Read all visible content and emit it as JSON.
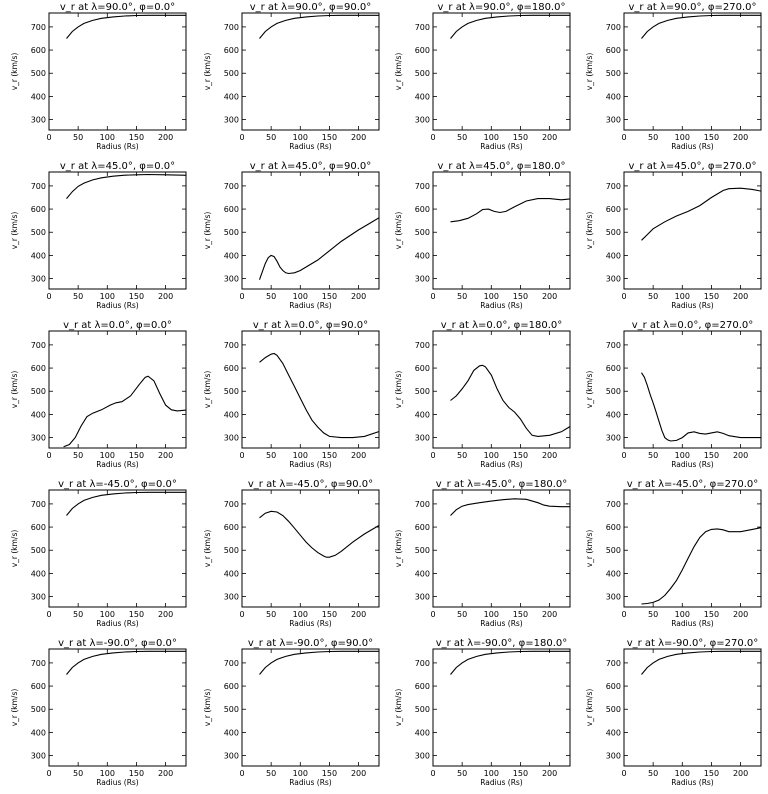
{
  "chart_data": [
    {
      "type": "line",
      "title": "v_r at λ=90.0°, φ=0.0°",
      "xlabel": "Radius (Rs)",
      "ylabel": "v_r (km/s)",
      "xlim": [
        0,
        235
      ],
      "ylim": [
        255,
        760
      ],
      "xticks": [
        0,
        50,
        100,
        150,
        200
      ],
      "yticks": [
        300,
        400,
        500,
        600,
        700
      ],
      "x": [
        30,
        40,
        50,
        60,
        75,
        90,
        110,
        130,
        150,
        170,
        200,
        230,
        240
      ],
      "y": [
        650,
        680,
        700,
        715,
        728,
        737,
        743,
        747,
        749,
        750,
        750,
        750,
        750
      ]
    },
    {
      "type": "line",
      "title": "v_r at λ=90.0°, φ=90.0°",
      "xlabel": "Radius (Rs)",
      "ylabel": "v_r (km/s)",
      "xlim": [
        0,
        235
      ],
      "ylim": [
        255,
        760
      ],
      "xticks": [
        0,
        50,
        100,
        150,
        200
      ],
      "yticks": [
        300,
        400,
        500,
        600,
        700
      ],
      "x": [
        30,
        40,
        50,
        60,
        75,
        90,
        110,
        130,
        150,
        170,
        200,
        230,
        240
      ],
      "y": [
        650,
        680,
        700,
        715,
        728,
        737,
        743,
        747,
        749,
        750,
        750,
        750,
        750
      ]
    },
    {
      "type": "line",
      "title": "v_r at λ=90.0°, φ=180.0°",
      "xlabel": "Radius (Rs)",
      "ylabel": "v_r (km/s)",
      "xlim": [
        0,
        235
      ],
      "ylim": [
        255,
        760
      ],
      "xticks": [
        0,
        50,
        100,
        150,
        200
      ],
      "yticks": [
        300,
        400,
        500,
        600,
        700
      ],
      "x": [
        30,
        40,
        50,
        60,
        75,
        90,
        110,
        130,
        150,
        170,
        200,
        230,
        240
      ],
      "y": [
        650,
        680,
        700,
        715,
        728,
        737,
        743,
        747,
        749,
        750,
        750,
        750,
        750
      ]
    },
    {
      "type": "line",
      "title": "v_r at λ=90.0°, φ=270.0°",
      "xlabel": "Radius (Rs)",
      "ylabel": "v_r (km/s)",
      "xlim": [
        0,
        235
      ],
      "ylim": [
        255,
        760
      ],
      "xticks": [
        0,
        50,
        100,
        150,
        200
      ],
      "yticks": [
        300,
        400,
        500,
        600,
        700
      ],
      "x": [
        30,
        40,
        50,
        60,
        75,
        90,
        110,
        130,
        150,
        170,
        200,
        230,
        240
      ],
      "y": [
        650,
        680,
        700,
        715,
        728,
        737,
        743,
        747,
        749,
        750,
        750,
        750,
        750
      ]
    },
    {
      "type": "line",
      "title": "v_r at λ=45.0°, φ=0.0°",
      "xlabel": "Radius (Rs)",
      "ylabel": "v_r (km/s)",
      "xlim": [
        0,
        235
      ],
      "ylim": [
        255,
        760
      ],
      "xticks": [
        0,
        50,
        100,
        150,
        200
      ],
      "yticks": [
        300,
        400,
        500,
        600,
        700
      ],
      "x": [
        30,
        40,
        50,
        60,
        75,
        90,
        110,
        130,
        150,
        170,
        200,
        230,
        240
      ],
      "y": [
        645,
        675,
        698,
        712,
        726,
        735,
        742,
        746,
        748,
        749,
        748,
        746,
        745
      ]
    },
    {
      "type": "line",
      "title": "v_r at λ=45.0°, φ=90.0°",
      "xlabel": "Radius (Rs)",
      "ylabel": "v_r (km/s)",
      "xlim": [
        0,
        235
      ],
      "ylim": [
        255,
        760
      ],
      "xticks": [
        0,
        50,
        100,
        150,
        200
      ],
      "yticks": [
        300,
        400,
        500,
        600,
        700
      ],
      "x": [
        30,
        35,
        40,
        45,
        50,
        55,
        60,
        65,
        70,
        75,
        80,
        90,
        100,
        110,
        130,
        150,
        170,
        200,
        220,
        240
      ],
      "y": [
        295,
        330,
        365,
        390,
        400,
        395,
        375,
        350,
        335,
        325,
        322,
        325,
        335,
        350,
        380,
        420,
        460,
        510,
        540,
        570
      ]
    },
    {
      "type": "line",
      "title": "v_r at λ=45.0°, φ=180.0°",
      "xlabel": "Radius (Rs)",
      "ylabel": "v_r (km/s)",
      "xlim": [
        0,
        235
      ],
      "ylim": [
        255,
        760
      ],
      "xticks": [
        0,
        50,
        100,
        150,
        200
      ],
      "yticks": [
        300,
        400,
        500,
        600,
        700
      ],
      "x": [
        30,
        45,
        60,
        75,
        85,
        95,
        105,
        115,
        125,
        140,
        160,
        180,
        200,
        220,
        240
      ],
      "y": [
        545,
        550,
        560,
        580,
        598,
        600,
        590,
        585,
        590,
        610,
        635,
        645,
        645,
        640,
        645
      ]
    },
    {
      "type": "line",
      "title": "v_r at λ=45.0°, φ=270.0°",
      "xlabel": "Radius (Rs)",
      "ylabel": "v_r (km/s)",
      "xlim": [
        0,
        235
      ],
      "ylim": [
        255,
        760
      ],
      "xticks": [
        0,
        50,
        100,
        150,
        200
      ],
      "yticks": [
        300,
        400,
        500,
        600,
        700
      ],
      "x": [
        30,
        40,
        50,
        70,
        90,
        110,
        130,
        150,
        170,
        180,
        200,
        220,
        240
      ],
      "y": [
        465,
        490,
        515,
        545,
        570,
        590,
        615,
        650,
        680,
        688,
        690,
        685,
        675
      ]
    },
    {
      "type": "line",
      "title": "v_r at λ=0.0°, φ=0.0°",
      "xlabel": "Radius (Rs)",
      "ylabel": "v_r (km/s)",
      "xlim": [
        0,
        235
      ],
      "ylim": [
        255,
        760
      ],
      "xticks": [
        0,
        50,
        100,
        150,
        200
      ],
      "yticks": [
        300,
        400,
        500,
        600,
        700
      ],
      "x": [
        25,
        35,
        45,
        55,
        65,
        75,
        90,
        105,
        115,
        125,
        140,
        155,
        165,
        170,
        180,
        190,
        200,
        210,
        220,
        240
      ],
      "y": [
        260,
        270,
        300,
        350,
        390,
        405,
        420,
        440,
        450,
        455,
        480,
        530,
        560,
        565,
        545,
        490,
        440,
        420,
        415,
        420
      ]
    },
    {
      "type": "line",
      "title": "v_r at λ=0.0°, φ=90.0°",
      "xlabel": "Radius (Rs)",
      "ylabel": "v_r (km/s)",
      "xlim": [
        0,
        235
      ],
      "ylim": [
        255,
        760
      ],
      "xticks": [
        0,
        50,
        100,
        150,
        200
      ],
      "yticks": [
        300,
        400,
        500,
        600,
        700
      ],
      "x": [
        30,
        40,
        50,
        55,
        60,
        70,
        80,
        90,
        100,
        110,
        120,
        130,
        140,
        150,
        170,
        190,
        210,
        240
      ],
      "y": [
        625,
        645,
        660,
        663,
        655,
        620,
        570,
        520,
        470,
        420,
        375,
        345,
        320,
        305,
        300,
        300,
        305,
        330
      ]
    },
    {
      "type": "line",
      "title": "v_r at λ=0.0°, φ=180.0°",
      "xlabel": "Radius (Rs)",
      "ylabel": "v_r (km/s)",
      "xlim": [
        0,
        235
      ],
      "ylim": [
        255,
        760
      ],
      "xticks": [
        0,
        50,
        100,
        150,
        200
      ],
      "yticks": [
        300,
        400,
        500,
        600,
        700
      ],
      "x": [
        30,
        40,
        50,
        60,
        70,
        80,
        85,
        90,
        100,
        110,
        120,
        130,
        140,
        150,
        160,
        170,
        180,
        200,
        220,
        240
      ],
      "y": [
        460,
        480,
        510,
        545,
        590,
        610,
        612,
        605,
        570,
        510,
        460,
        430,
        410,
        380,
        340,
        310,
        305,
        310,
        325,
        355
      ]
    },
    {
      "type": "line",
      "title": "v_r at λ=0.0°, φ=270.0°",
      "xlabel": "Radius (Rs)",
      "ylabel": "v_r (km/s)",
      "xlim": [
        0,
        235
      ],
      "ylim": [
        255,
        760
      ],
      "xticks": [
        0,
        50,
        100,
        150,
        200
      ],
      "yticks": [
        300,
        400,
        500,
        600,
        700
      ],
      "x": [
        30,
        35,
        40,
        45,
        50,
        55,
        60,
        65,
        70,
        75,
        80,
        90,
        100,
        110,
        120,
        130,
        140,
        150,
        160,
        170,
        180,
        200,
        220,
        240
      ],
      "y": [
        580,
        560,
        525,
        485,
        450,
        410,
        370,
        330,
        300,
        290,
        285,
        288,
        300,
        320,
        325,
        318,
        315,
        320,
        325,
        318,
        308,
        300,
        300,
        300
      ]
    },
    {
      "type": "line",
      "title": "v_r at λ=-45.0°, φ=0.0°",
      "xlabel": "Radius (Rs)",
      "ylabel": "v_r (km/s)",
      "xlim": [
        0,
        235
      ],
      "ylim": [
        255,
        760
      ],
      "xticks": [
        0,
        50,
        100,
        150,
        200
      ],
      "yticks": [
        300,
        400,
        500,
        600,
        700
      ],
      "x": [
        30,
        40,
        50,
        60,
        75,
        90,
        110,
        130,
        150,
        170,
        200,
        230,
        240
      ],
      "y": [
        650,
        680,
        700,
        715,
        728,
        737,
        743,
        747,
        749,
        750,
        750,
        750,
        750
      ]
    },
    {
      "type": "line",
      "title": "v_r at λ=-45.0°, φ=90.0°",
      "xlabel": "Radius (Rs)",
      "ylabel": "v_r (km/s)",
      "xlim": [
        0,
        235
      ],
      "ylim": [
        255,
        760
      ],
      "xticks": [
        0,
        50,
        100,
        150,
        200
      ],
      "yticks": [
        300,
        400,
        500,
        600,
        700
      ],
      "x": [
        30,
        40,
        50,
        60,
        70,
        80,
        90,
        100,
        110,
        120,
        130,
        140,
        145,
        150,
        160,
        170,
        190,
        210,
        230,
        240
      ],
      "y": [
        640,
        660,
        668,
        665,
        650,
        625,
        595,
        565,
        535,
        510,
        490,
        475,
        470,
        470,
        478,
        495,
        535,
        570,
        600,
        615
      ]
    },
    {
      "type": "line",
      "title": "v_r at λ=-45.0°, φ=180.0°",
      "xlabel": "Radius (Rs)",
      "ylabel": "v_r (km/s)",
      "xlim": [
        0,
        235
      ],
      "ylim": [
        255,
        760
      ],
      "xticks": [
        0,
        50,
        100,
        150,
        200
      ],
      "yticks": [
        300,
        400,
        500,
        600,
        700
      ],
      "x": [
        30,
        40,
        50,
        60,
        80,
        100,
        120,
        140,
        160,
        180,
        190,
        200,
        220,
        240
      ],
      "y": [
        650,
        675,
        690,
        697,
        705,
        712,
        718,
        722,
        720,
        705,
        695,
        690,
        688,
        688
      ]
    },
    {
      "type": "line",
      "title": "v_r at λ=-45.0°, φ=270.0°",
      "xlabel": "Radius (Rs)",
      "ylabel": "v_r (km/s)",
      "xlim": [
        0,
        235
      ],
      "ylim": [
        255,
        760
      ],
      "xticks": [
        0,
        50,
        100,
        150,
        200
      ],
      "yticks": [
        300,
        400,
        500,
        600,
        700
      ],
      "x": [
        30,
        40,
        50,
        60,
        70,
        80,
        90,
        100,
        110,
        120,
        130,
        140,
        150,
        160,
        170,
        180,
        200,
        220,
        240
      ],
      "y": [
        268,
        270,
        275,
        285,
        305,
        335,
        370,
        415,
        465,
        515,
        555,
        580,
        590,
        592,
        588,
        580,
        580,
        590,
        600
      ]
    },
    {
      "type": "line",
      "title": "v_r at λ=-90.0°, φ=0.0°",
      "xlabel": "Radius (Rs)",
      "ylabel": "v_r (km/s)",
      "xlim": [
        0,
        235
      ],
      "ylim": [
        255,
        760
      ],
      "xticks": [
        0,
        50,
        100,
        150,
        200
      ],
      "yticks": [
        300,
        400,
        500,
        600,
        700
      ],
      "x": [
        30,
        40,
        50,
        60,
        75,
        90,
        110,
        130,
        150,
        170,
        200,
        230,
        240
      ],
      "y": [
        650,
        680,
        700,
        715,
        728,
        737,
        743,
        747,
        749,
        750,
        750,
        750,
        750
      ]
    },
    {
      "type": "line",
      "title": "v_r at λ=-90.0°, φ=90.0°",
      "xlabel": "Radius (Rs)",
      "ylabel": "v_r (km/s)",
      "xlim": [
        0,
        235
      ],
      "ylim": [
        255,
        760
      ],
      "xticks": [
        0,
        50,
        100,
        150,
        200
      ],
      "yticks": [
        300,
        400,
        500,
        600,
        700
      ],
      "x": [
        30,
        40,
        50,
        60,
        75,
        90,
        110,
        130,
        150,
        170,
        200,
        230,
        240
      ],
      "y": [
        650,
        680,
        700,
        715,
        728,
        737,
        743,
        747,
        749,
        750,
        750,
        750,
        750
      ]
    },
    {
      "type": "line",
      "title": "v_r at λ=-90.0°, φ=180.0°",
      "xlabel": "Radius (Rs)",
      "ylabel": "v_r (km/s)",
      "xlim": [
        0,
        235
      ],
      "ylim": [
        255,
        760
      ],
      "xticks": [
        0,
        50,
        100,
        150,
        200
      ],
      "yticks": [
        300,
        400,
        500,
        600,
        700
      ],
      "x": [
        30,
        40,
        50,
        60,
        75,
        90,
        110,
        130,
        150,
        170,
        200,
        230,
        240
      ],
      "y": [
        650,
        680,
        700,
        715,
        728,
        737,
        743,
        747,
        749,
        750,
        750,
        750,
        750
      ]
    },
    {
      "type": "line",
      "title": "v_r at λ=-90.0°, φ=270.0°",
      "xlabel": "Radius (Rs)",
      "ylabel": "v_r (km/s)",
      "xlim": [
        0,
        235
      ],
      "ylim": [
        255,
        760
      ],
      "xticks": [
        0,
        50,
        100,
        150,
        200
      ],
      "yticks": [
        300,
        400,
        500,
        600,
        700
      ],
      "x": [
        30,
        40,
        50,
        60,
        75,
        90,
        110,
        130,
        150,
        170,
        200,
        230,
        240
      ],
      "y": [
        650,
        680,
        700,
        715,
        728,
        737,
        743,
        747,
        749,
        750,
        750,
        750,
        750
      ]
    }
  ]
}
